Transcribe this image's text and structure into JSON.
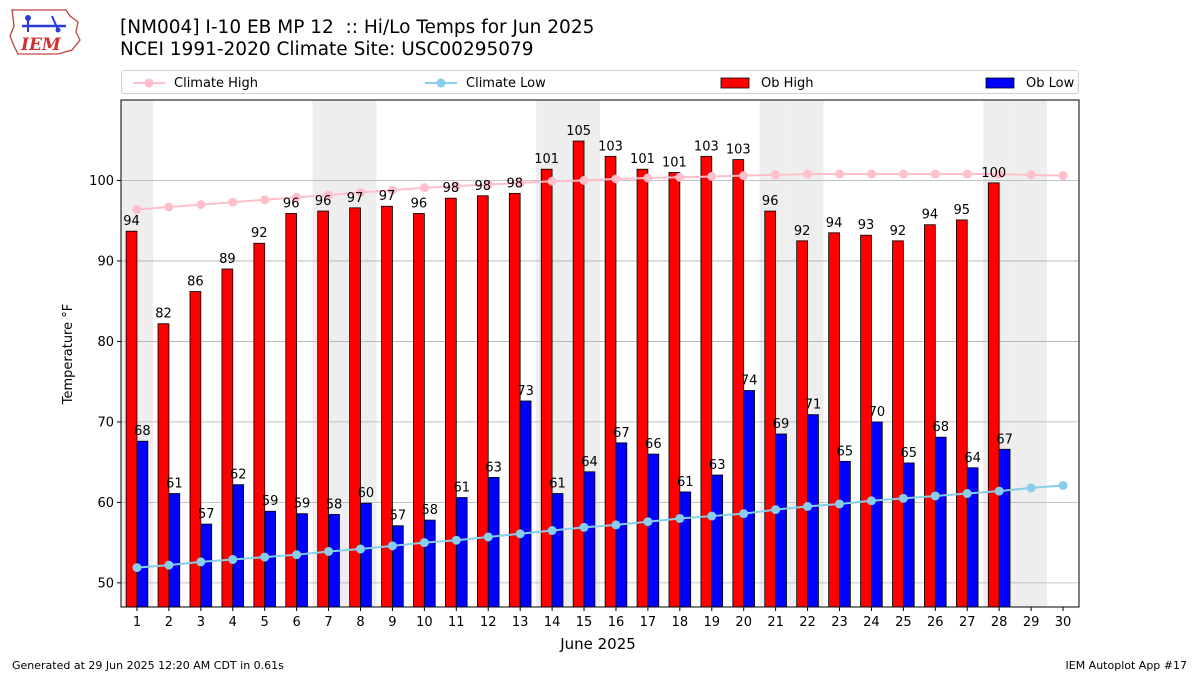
{
  "header": {
    "title_line1": "[NM004] I-10 EB MP 12  :: Hi/Lo Temps for Jun 2025",
    "title_line2": "NCEI 1991-2020 Climate Site: USC00295079",
    "logo_text": "IEM"
  },
  "legend": {
    "climate_high": "Climate High",
    "climate_low": "Climate Low",
    "ob_high": "Ob High",
    "ob_low": "Ob Low"
  },
  "colors": {
    "ob_high": "#ff0000",
    "ob_low": "#0000ff",
    "climate_high": "#ffc0cb",
    "climate_low": "#87ceeb",
    "weekend_shade": "#eeeeee"
  },
  "footer": {
    "left": "Generated at 29 Jun 2025 12:20 AM CDT in 0.61s",
    "right": "IEM Autoplot App #17"
  },
  "chart_data": {
    "type": "bar",
    "xlabel": "June 2025",
    "ylabel": "Temperature °F",
    "ylim": [
      47,
      110
    ],
    "xlim": [
      0.5,
      30.5
    ],
    "grid": "horizontal",
    "legend_position": "top",
    "yticks": [
      50,
      60,
      70,
      80,
      90,
      100
    ],
    "days": [
      1,
      2,
      3,
      4,
      5,
      6,
      7,
      8,
      9,
      10,
      11,
      12,
      13,
      14,
      15,
      16,
      17,
      18,
      19,
      20,
      21,
      22,
      23,
      24,
      25,
      26,
      27,
      28,
      29,
      30
    ],
    "shaded_weekend_days": [
      1,
      7,
      8,
      14,
      15,
      21,
      22,
      28,
      29
    ],
    "series": [
      {
        "name": "Ob High",
        "type": "bar",
        "values": [
          93.7,
          82.2,
          86.2,
          89.0,
          92.2,
          95.9,
          96.2,
          96.6,
          96.8,
          95.9,
          97.8,
          98.1,
          98.4,
          101.4,
          104.9,
          103.0,
          101.4,
          101.0,
          103.0,
          102.6,
          96.2,
          92.5,
          93.5,
          93.2,
          92.5,
          94.5,
          95.1,
          99.7
        ]
      },
      {
        "name": "Ob Low",
        "type": "bar",
        "values": [
          67.6,
          61.1,
          57.3,
          62.2,
          58.9,
          58.6,
          58.5,
          59.9,
          57.1,
          57.8,
          60.6,
          63.1,
          72.6,
          61.1,
          63.8,
          67.4,
          66.0,
          61.3,
          63.4,
          73.9,
          68.5,
          70.9,
          65.1,
          70.0,
          64.9,
          68.1,
          64.3,
          66.6
        ]
      },
      {
        "name": "Climate High",
        "type": "line",
        "values": [
          96.4,
          96.7,
          97.0,
          97.3,
          97.6,
          97.9,
          98.2,
          98.5,
          98.8,
          99.1,
          99.3,
          99.5,
          99.7,
          99.9,
          100.0,
          100.2,
          100.3,
          100.4,
          100.5,
          100.6,
          100.7,
          100.8,
          100.8,
          100.8,
          100.8,
          100.8,
          100.8,
          100.8,
          100.7,
          100.6
        ]
      },
      {
        "name": "Climate Low",
        "type": "line",
        "values": [
          51.9,
          52.2,
          52.6,
          52.9,
          53.2,
          53.5,
          53.9,
          54.2,
          54.6,
          55.0,
          55.3,
          55.7,
          56.1,
          56.5,
          56.9,
          57.2,
          57.6,
          58.0,
          58.3,
          58.6,
          59.1,
          59.5,
          59.8,
          60.2,
          60.5,
          60.8,
          61.1,
          61.4,
          61.8,
          62.1
        ]
      }
    ],
    "high_labels": [
      "94",
      "82",
      "86",
      "89",
      "92",
      "96",
      "96",
      "97",
      "97",
      "96",
      "98",
      "98",
      "98",
      "101",
      "105",
      "103",
      "101",
      "101",
      "103",
      "103",
      "96",
      "92",
      "94",
      "93",
      "92",
      "94",
      "95",
      "100"
    ],
    "low_labels": [
      "68",
      "61",
      "57",
      "62",
      "59",
      "59",
      "58",
      "60",
      "57",
      "58",
      "61",
      "63",
      "73",
      "61",
      "64",
      "67",
      "66",
      "61",
      "63",
      "74",
      "69",
      "71",
      "65",
      "70",
      "65",
      "68",
      "64",
      "67"
    ]
  }
}
